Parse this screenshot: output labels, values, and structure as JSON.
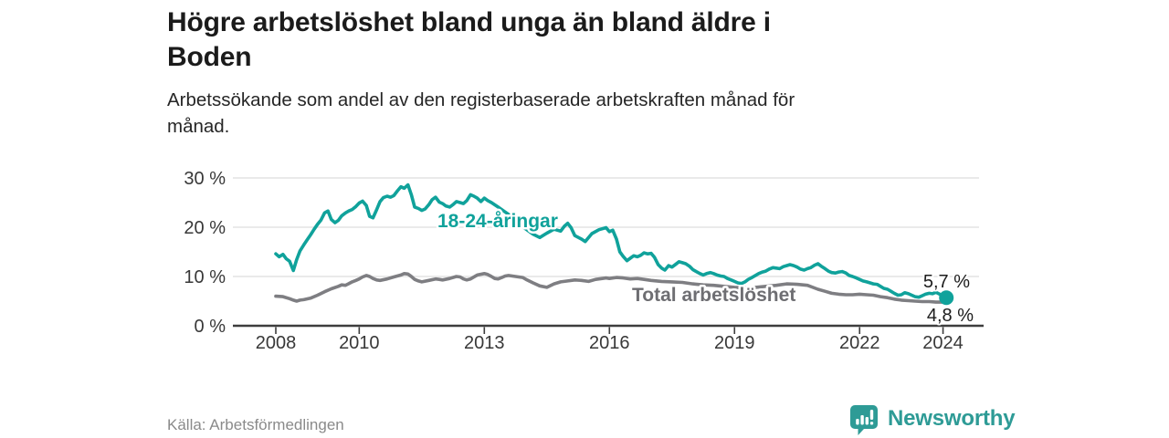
{
  "header": {
    "title_lines": [
      "Högre arbetslöshet bland unga än bland äldre i",
      "Boden"
    ],
    "subtitle_lines": [
      "Arbetssökande som andel av den registerbaserade arbetskraften månad för",
      "månad."
    ]
  },
  "chart_data": {
    "type": "line",
    "title": "Högre arbetslöshet bland unga än bland äldre i Boden",
    "subtitle": "Arbetssökande som andel av den registerbaserade arbetskraften månad för månad.",
    "source": "Källa: Arbetsförmedlingen",
    "grid": "horizontal",
    "legend_position": "inline-labels",
    "x_axis": {
      "ticks": [
        2008,
        2010,
        2013,
        2016,
        2019,
        2022,
        2024
      ],
      "range": [
        2006.7,
        2024.95
      ]
    },
    "y_axis": {
      "ticks": [
        {
          "value": 0,
          "label": "0 %"
        },
        {
          "value": 10,
          "label": "10 %"
        },
        {
          "value": 20,
          "label": "20 %"
        },
        {
          "value": 30,
          "label": "30 %"
        }
      ],
      "range": [
        0,
        31
      ]
    },
    "series": [
      {
        "name": "18-24-åringar",
        "color": "#10A29B",
        "end_label": "5,7 %",
        "end_dot": true,
        "points": [
          [
            2008.0,
            14.6
          ],
          [
            2008.08,
            14.0
          ],
          [
            2008.17,
            14.5
          ],
          [
            2008.25,
            13.6
          ],
          [
            2008.33,
            13.1
          ],
          [
            2008.42,
            11.2
          ],
          [
            2008.5,
            13.4
          ],
          [
            2008.58,
            15.2
          ],
          [
            2008.67,
            16.4
          ],
          [
            2008.75,
            17.4
          ],
          [
            2008.83,
            18.4
          ],
          [
            2008.92,
            19.6
          ],
          [
            2009.0,
            20.6
          ],
          [
            2009.08,
            21.4
          ],
          [
            2009.17,
            22.9
          ],
          [
            2009.25,
            23.3
          ],
          [
            2009.33,
            21.6
          ],
          [
            2009.42,
            20.9
          ],
          [
            2009.5,
            21.4
          ],
          [
            2009.58,
            22.3
          ],
          [
            2009.67,
            22.9
          ],
          [
            2009.75,
            23.3
          ],
          [
            2009.83,
            23.6
          ],
          [
            2009.92,
            24.2
          ],
          [
            2010.0,
            24.9
          ],
          [
            2010.08,
            25.3
          ],
          [
            2010.17,
            24.4
          ],
          [
            2010.25,
            22.2
          ],
          [
            2010.33,
            21.9
          ],
          [
            2010.42,
            23.6
          ],
          [
            2010.5,
            25.2
          ],
          [
            2010.58,
            26.0
          ],
          [
            2010.67,
            26.3
          ],
          [
            2010.75,
            26.1
          ],
          [
            2010.83,
            26.4
          ],
          [
            2010.92,
            27.4
          ],
          [
            2011.0,
            28.2
          ],
          [
            2011.08,
            27.9
          ],
          [
            2011.17,
            28.6
          ],
          [
            2011.25,
            26.6
          ],
          [
            2011.33,
            24.1
          ],
          [
            2011.42,
            23.8
          ],
          [
            2011.5,
            23.4
          ],
          [
            2011.58,
            23.7
          ],
          [
            2011.67,
            24.6
          ],
          [
            2011.75,
            25.6
          ],
          [
            2011.83,
            26.1
          ],
          [
            2011.92,
            25.1
          ],
          [
            2012.0,
            24.8
          ],
          [
            2012.08,
            24.3
          ],
          [
            2012.17,
            24.1
          ],
          [
            2012.25,
            24.6
          ],
          [
            2012.33,
            25.2
          ],
          [
            2012.42,
            25.0
          ],
          [
            2012.5,
            24.8
          ],
          [
            2012.58,
            25.4
          ],
          [
            2012.67,
            26.6
          ],
          [
            2012.75,
            26.3
          ],
          [
            2012.83,
            25.9
          ],
          [
            2012.92,
            25.2
          ],
          [
            2013.0,
            25.9
          ],
          [
            2013.08,
            25.4
          ],
          [
            2013.17,
            25.0
          ],
          [
            2013.33,
            24.1
          ],
          [
            2013.5,
            23.1
          ],
          [
            2013.67,
            22.1
          ],
          [
            2013.83,
            20.6
          ],
          [
            2014.0,
            19.6
          ],
          [
            2014.17,
            18.6
          ],
          [
            2014.33,
            17.9
          ],
          [
            2014.5,
            18.8
          ],
          [
            2014.67,
            19.6
          ],
          [
            2014.83,
            19.2
          ],
          [
            2014.92,
            20.2
          ],
          [
            2015.0,
            20.8
          ],
          [
            2015.08,
            19.9
          ],
          [
            2015.17,
            18.3
          ],
          [
            2015.33,
            17.6
          ],
          [
            2015.42,
            17.1
          ],
          [
            2015.58,
            18.7
          ],
          [
            2015.75,
            19.5
          ],
          [
            2015.92,
            19.9
          ],
          [
            2016.0,
            19.1
          ],
          [
            2016.08,
            19.4
          ],
          [
            2016.17,
            17.6
          ],
          [
            2016.25,
            15.0
          ],
          [
            2016.33,
            14.1
          ],
          [
            2016.42,
            13.2
          ],
          [
            2016.5,
            13.7
          ],
          [
            2016.58,
            14.2
          ],
          [
            2016.67,
            14.0
          ],
          [
            2016.75,
            14.3
          ],
          [
            2016.83,
            14.8
          ],
          [
            2016.92,
            14.6
          ],
          [
            2017.0,
            14.7
          ],
          [
            2017.08,
            13.9
          ],
          [
            2017.17,
            12.4
          ],
          [
            2017.25,
            11.7
          ],
          [
            2017.33,
            11.3
          ],
          [
            2017.42,
            12.2
          ],
          [
            2017.5,
            11.9
          ],
          [
            2017.58,
            12.4
          ],
          [
            2017.67,
            13.0
          ],
          [
            2017.75,
            12.8
          ],
          [
            2017.83,
            12.6
          ],
          [
            2017.92,
            12.1
          ],
          [
            2018.0,
            11.4
          ],
          [
            2018.08,
            11.0
          ],
          [
            2018.17,
            10.6
          ],
          [
            2018.25,
            10.3
          ],
          [
            2018.33,
            10.6
          ],
          [
            2018.42,
            10.8
          ],
          [
            2018.5,
            10.6
          ],
          [
            2018.58,
            10.3
          ],
          [
            2018.67,
            10.1
          ],
          [
            2018.75,
            10.0
          ],
          [
            2018.83,
            9.6
          ],
          [
            2018.92,
            9.3
          ],
          [
            2019.0,
            9.0
          ],
          [
            2019.08,
            8.7
          ],
          [
            2019.17,
            8.6
          ],
          [
            2019.25,
            8.9
          ],
          [
            2019.33,
            9.4
          ],
          [
            2019.42,
            9.8
          ],
          [
            2019.5,
            10.2
          ],
          [
            2019.58,
            10.6
          ],
          [
            2019.67,
            10.9
          ],
          [
            2019.75,
            11.1
          ],
          [
            2019.83,
            11.5
          ],
          [
            2019.92,
            11.8
          ],
          [
            2020.0,
            11.7
          ],
          [
            2020.08,
            11.6
          ],
          [
            2020.17,
            12.0
          ],
          [
            2020.25,
            12.2
          ],
          [
            2020.33,
            12.4
          ],
          [
            2020.42,
            12.2
          ],
          [
            2020.5,
            11.9
          ],
          [
            2020.58,
            11.5
          ],
          [
            2020.67,
            11.3
          ],
          [
            2020.75,
            11.6
          ],
          [
            2020.83,
            11.8
          ],
          [
            2020.92,
            12.3
          ],
          [
            2021.0,
            12.6
          ],
          [
            2021.08,
            12.1
          ],
          [
            2021.17,
            11.6
          ],
          [
            2021.25,
            11.1
          ],
          [
            2021.33,
            10.8
          ],
          [
            2021.42,
            10.7
          ],
          [
            2021.5,
            10.9
          ],
          [
            2021.58,
            11.0
          ],
          [
            2021.67,
            10.7
          ],
          [
            2021.75,
            10.2
          ],
          [
            2021.83,
            10.0
          ],
          [
            2021.92,
            9.7
          ],
          [
            2022.0,
            9.4
          ],
          [
            2022.08,
            9.1
          ],
          [
            2022.17,
            8.9
          ],
          [
            2022.25,
            8.7
          ],
          [
            2022.33,
            8.5
          ],
          [
            2022.42,
            8.4
          ],
          [
            2022.5,
            8.0
          ],
          [
            2022.58,
            7.6
          ],
          [
            2022.67,
            7.4
          ],
          [
            2022.75,
            7.0
          ],
          [
            2022.83,
            6.6
          ],
          [
            2022.92,
            6.2
          ],
          [
            2023.0,
            6.3
          ],
          [
            2023.08,
            6.7
          ],
          [
            2023.17,
            6.5
          ],
          [
            2023.25,
            6.2
          ],
          [
            2023.33,
            5.9
          ],
          [
            2023.42,
            5.8
          ],
          [
            2023.5,
            6.1
          ],
          [
            2023.58,
            6.4
          ],
          [
            2023.67,
            6.6
          ],
          [
            2023.75,
            6.5
          ],
          [
            2023.83,
            6.8
          ],
          [
            2023.92,
            6.4
          ],
          [
            2024.0,
            6.0
          ],
          [
            2024.08,
            5.7
          ]
        ]
      },
      {
        "name": "Total arbetslöshet",
        "color": "#7E7E82",
        "label_color": "#6E6E72",
        "end_label": "4,8 %",
        "end_dot": false,
        "points": [
          [
            2008.0,
            6.0
          ],
          [
            2008.17,
            5.9
          ],
          [
            2008.33,
            5.5
          ],
          [
            2008.42,
            5.2
          ],
          [
            2008.5,
            5.0
          ],
          [
            2008.58,
            5.2
          ],
          [
            2008.67,
            5.3
          ],
          [
            2008.83,
            5.6
          ],
          [
            2009.0,
            6.2
          ],
          [
            2009.17,
            6.9
          ],
          [
            2009.33,
            7.5
          ],
          [
            2009.5,
            8.0
          ],
          [
            2009.58,
            8.3
          ],
          [
            2009.67,
            8.2
          ],
          [
            2009.83,
            8.9
          ],
          [
            2009.92,
            9.2
          ],
          [
            2010.0,
            9.5
          ],
          [
            2010.08,
            9.9
          ],
          [
            2010.17,
            10.2
          ],
          [
            2010.25,
            10.0
          ],
          [
            2010.33,
            9.6
          ],
          [
            2010.42,
            9.3
          ],
          [
            2010.5,
            9.2
          ],
          [
            2010.67,
            9.5
          ],
          [
            2010.83,
            9.9
          ],
          [
            2011.0,
            10.3
          ],
          [
            2011.08,
            10.6
          ],
          [
            2011.17,
            10.5
          ],
          [
            2011.25,
            10.0
          ],
          [
            2011.33,
            9.4
          ],
          [
            2011.42,
            9.1
          ],
          [
            2011.5,
            8.9
          ],
          [
            2011.67,
            9.2
          ],
          [
            2011.83,
            9.5
          ],
          [
            2011.92,
            9.4
          ],
          [
            2012.0,
            9.3
          ],
          [
            2012.17,
            9.6
          ],
          [
            2012.33,
            10.0
          ],
          [
            2012.42,
            9.9
          ],
          [
            2012.5,
            9.5
          ],
          [
            2012.58,
            9.3
          ],
          [
            2012.67,
            9.5
          ],
          [
            2012.83,
            10.3
          ],
          [
            2013.0,
            10.6
          ],
          [
            2013.08,
            10.4
          ],
          [
            2013.17,
            10.0
          ],
          [
            2013.25,
            9.6
          ],
          [
            2013.33,
            9.5
          ],
          [
            2013.42,
            9.8
          ],
          [
            2013.5,
            10.1
          ],
          [
            2013.58,
            10.2
          ],
          [
            2013.75,
            10.0
          ],
          [
            2013.92,
            9.8
          ],
          [
            2014.0,
            9.4
          ],
          [
            2014.17,
            8.7
          ],
          [
            2014.33,
            8.1
          ],
          [
            2014.5,
            7.8
          ],
          [
            2014.67,
            8.5
          ],
          [
            2014.83,
            8.9
          ],
          [
            2015.0,
            9.1
          ],
          [
            2015.17,
            9.3
          ],
          [
            2015.33,
            9.2
          ],
          [
            2015.5,
            9.0
          ],
          [
            2015.67,
            9.4
          ],
          [
            2015.83,
            9.6
          ],
          [
            2015.92,
            9.7
          ],
          [
            2016.0,
            9.6
          ],
          [
            2016.17,
            9.8
          ],
          [
            2016.33,
            9.7
          ],
          [
            2016.5,
            9.5
          ],
          [
            2016.67,
            9.6
          ],
          [
            2016.83,
            9.4
          ],
          [
            2017.0,
            9.2
          ],
          [
            2017.25,
            9.0
          ],
          [
            2017.5,
            8.9
          ],
          [
            2017.75,
            8.8
          ],
          [
            2018.0,
            8.5
          ],
          [
            2018.25,
            8.3
          ],
          [
            2018.5,
            8.2
          ],
          [
            2018.75,
            8.0
          ],
          [
            2019.0,
            7.8
          ],
          [
            2019.25,
            7.7
          ],
          [
            2019.5,
            7.8
          ],
          [
            2019.75,
            8.0
          ],
          [
            2020.0,
            8.2
          ],
          [
            2020.25,
            8.5
          ],
          [
            2020.5,
            8.4
          ],
          [
            2020.75,
            8.2
          ],
          [
            2021.0,
            7.4
          ],
          [
            2021.17,
            7.0
          ],
          [
            2021.33,
            6.6
          ],
          [
            2021.5,
            6.4
          ],
          [
            2021.67,
            6.3
          ],
          [
            2021.83,
            6.3
          ],
          [
            2022.0,
            6.4
          ],
          [
            2022.17,
            6.3
          ],
          [
            2022.33,
            6.2
          ],
          [
            2022.5,
            5.9
          ],
          [
            2022.67,
            5.7
          ],
          [
            2022.83,
            5.4
          ],
          [
            2023.0,
            5.2
          ],
          [
            2023.17,
            5.1
          ],
          [
            2023.33,
            5.0
          ],
          [
            2023.5,
            4.9
          ],
          [
            2023.67,
            4.9
          ],
          [
            2023.83,
            4.8
          ],
          [
            2024.0,
            4.8
          ],
          [
            2024.08,
            4.8
          ]
        ]
      }
    ]
  },
  "footer": {
    "source": "Källa: Arbetsförmedlingen",
    "brand": "Newsworthy"
  },
  "colors": {
    "accent_teal": "#10A29B",
    "series_gray": "#7E7E82",
    "brand_teal": "#2E9B96",
    "axis": "#3d3d3d",
    "grid": "#e3e3e3"
  }
}
